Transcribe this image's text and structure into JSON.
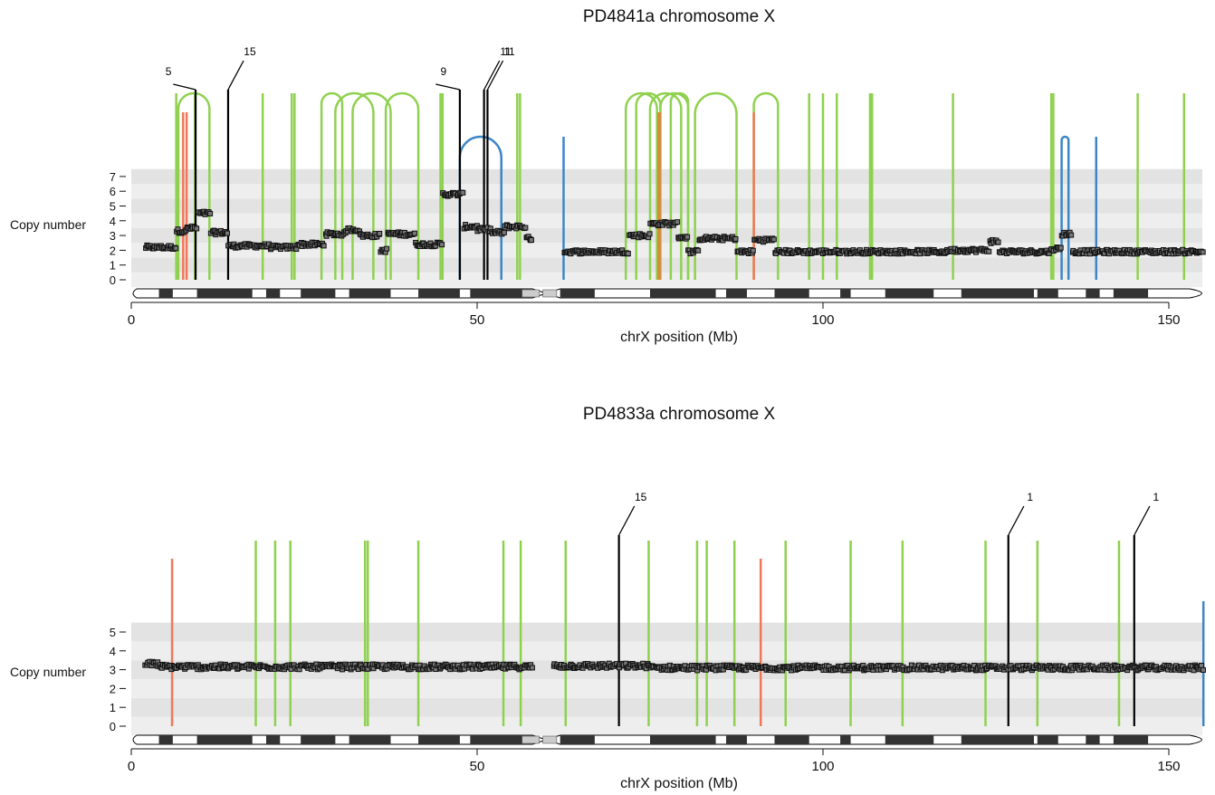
{
  "chart_data": [
    {
      "type": "scatter",
      "title": "PD4841a chromosome X",
      "xlabel": "chrX position (Mb)",
      "ylabel": "Copy number",
      "xlim": [
        0,
        156
      ],
      "ylim": [
        0,
        7
      ],
      "x_ticks": [
        0,
        50,
        100,
        150
      ],
      "y_ticks": [
        0,
        1,
        2,
        3,
        4,
        5,
        6,
        7
      ],
      "grid": "alternating horizontal bands",
      "copy_number_segments": [
        {
          "start": 2,
          "end": 6.5,
          "cn": 2.2
        },
        {
          "start": 6.5,
          "end": 8,
          "cn": 3.3
        },
        {
          "start": 8,
          "end": 9.5,
          "cn": 3.5
        },
        {
          "start": 9.5,
          "end": 11.5,
          "cn": 4.5
        },
        {
          "start": 11.5,
          "end": 14,
          "cn": 3.2
        },
        {
          "start": 14,
          "end": 20,
          "cn": 2.3
        },
        {
          "start": 20,
          "end": 24,
          "cn": 2.2
        },
        {
          "start": 24,
          "end": 28,
          "cn": 2.4
        },
        {
          "start": 28,
          "end": 31,
          "cn": 3.1
        },
        {
          "start": 31,
          "end": 33,
          "cn": 3.4
        },
        {
          "start": 33,
          "end": 36,
          "cn": 3.0
        },
        {
          "start": 36,
          "end": 37,
          "cn": 2.0
        },
        {
          "start": 37,
          "end": 41,
          "cn": 3.1
        },
        {
          "start": 41,
          "end": 45,
          "cn": 2.4
        },
        {
          "start": 45,
          "end": 48,
          "cn": 5.8
        },
        {
          "start": 48,
          "end": 50,
          "cn": 3.6
        },
        {
          "start": 50,
          "end": 52,
          "cn": 3.4
        },
        {
          "start": 52,
          "end": 54,
          "cn": 3.2
        },
        {
          "start": 54,
          "end": 57,
          "cn": 3.6
        },
        {
          "start": 57,
          "end": 58,
          "cn": 2.8
        },
        {
          "start": 62.5,
          "end": 72,
          "cn": 1.9
        },
        {
          "start": 72,
          "end": 75,
          "cn": 3.0
        },
        {
          "start": 75,
          "end": 79,
          "cn": 3.8
        },
        {
          "start": 79,
          "end": 80.5,
          "cn": 2.9
        },
        {
          "start": 80.5,
          "end": 82,
          "cn": 1.9
        },
        {
          "start": 82,
          "end": 87.5,
          "cn": 2.8
        },
        {
          "start": 87.5,
          "end": 90,
          "cn": 1.9
        },
        {
          "start": 90,
          "end": 93,
          "cn": 2.7
        },
        {
          "start": 93,
          "end": 118,
          "cn": 1.9
        },
        {
          "start": 118,
          "end": 124,
          "cn": 2.0
        },
        {
          "start": 124,
          "end": 125.5,
          "cn": 2.6
        },
        {
          "start": 125.5,
          "end": 133,
          "cn": 1.9
        },
        {
          "start": 133,
          "end": 134.5,
          "cn": 2.1
        },
        {
          "start": 134.5,
          "end": 136,
          "cn": 3.1
        },
        {
          "start": 136,
          "end": 155,
          "cn": 1.9
        }
      ],
      "rearrangements": {
        "green_arcs": [
          [
            6.8,
            11.3
          ],
          [
            27.5,
            30.5
          ],
          [
            29.5,
            35
          ],
          [
            32,
            37.5
          ],
          [
            36.8,
            41.5
          ],
          [
            71.5,
            76
          ],
          [
            73,
            76.5
          ],
          [
            75,
            79.5
          ],
          [
            76.5,
            80.5
          ],
          [
            78,
            80.5
          ],
          [
            81.5,
            87.5
          ],
          [
            90,
            93.5
          ]
        ],
        "green_lines": [
          6.5,
          9.2,
          19,
          23.2,
          23.6,
          44.7,
          45,
          55.8,
          56.2,
          98,
          100,
          102,
          106.8,
          107.1,
          118.8,
          133,
          133.3,
          145.5,
          152.2
        ],
        "black_lines": [
          9.3,
          14,
          47.5,
          51,
          51.5
        ],
        "red_lines": [
          7.5,
          8,
          90
        ],
        "orange_lines": [
          76.3
        ],
        "blue_arcs": [
          [
            47.5,
            53.5
          ],
          [
            134.5,
            135.5
          ]
        ],
        "blue_lines": [
          62.5,
          139.5
        ]
      },
      "line_labels": [
        {
          "label": "5",
          "x": 9.3
        },
        {
          "label": "15",
          "x": 14
        },
        {
          "label": "9",
          "x": 47.5
        },
        {
          "label": "11",
          "x": 51
        },
        {
          "label": "11",
          "x": 51.5
        }
      ]
    },
    {
      "type": "scatter",
      "title": "PD4833a chromosome X",
      "xlabel": "chrX position (Mb)",
      "ylabel": "Copy number",
      "xlim": [
        0,
        156
      ],
      "ylim": [
        0,
        5
      ],
      "x_ticks": [
        0,
        50,
        100,
        150
      ],
      "y_ticks": [
        0,
        1,
        2,
        3,
        4,
        5
      ],
      "grid": "alternating horizontal bands",
      "copy_number_segments": [
        {
          "start": 2,
          "end": 4,
          "cn": 3.3
        },
        {
          "start": 4,
          "end": 58,
          "cn": 3.15
        },
        {
          "start": 61,
          "end": 75,
          "cn": 3.2
        },
        {
          "start": 75,
          "end": 155,
          "cn": 3.1
        }
      ],
      "rearrangements": {
        "green_lines": [
          18,
          20.8,
          23,
          33.8,
          34.2,
          41.5,
          53.8,
          56.3,
          62.8,
          74.8,
          81.8,
          83.2,
          87.2,
          94.6,
          104,
          111.5,
          123.5,
          131,
          142.8
        ],
        "black_lines": [
          70.5,
          126.8,
          145
        ],
        "red_lines": [
          5.9,
          91
        ],
        "blue_lines": [
          155
        ]
      },
      "line_labels": [
        {
          "label": "15",
          "x": 70.5
        },
        {
          "label": "1",
          "x": 126.8
        },
        {
          "label": "1",
          "x": 145
        }
      ]
    }
  ]
}
